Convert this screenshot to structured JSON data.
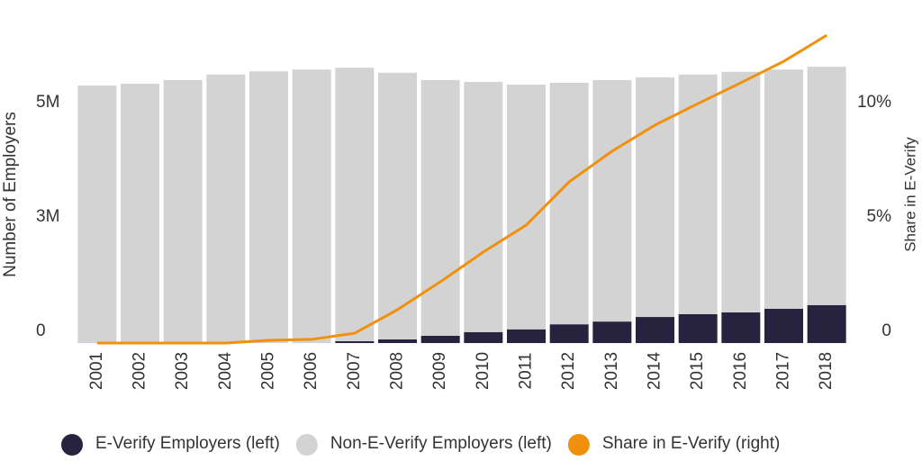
{
  "chart_data": {
    "type": "bar-line",
    "y_label": "Number of Employers",
    "y2_label": "Share in E-Verify",
    "categories": [
      "2001",
      "2002",
      "2003",
      "2004",
      "2005",
      "2006",
      "2007",
      "2008",
      "2009",
      "2010",
      "2011",
      "2012",
      "2013",
      "2014",
      "2015",
      "2016",
      "2017",
      "2018"
    ],
    "series": [
      {
        "name": "E-Verify Employers (left)",
        "color": "#27233f",
        "kind": "bar",
        "values": [
          0,
          0,
          0,
          0,
          0,
          0,
          40000,
          80000,
          160000,
          240000,
          300000,
          410000,
          470000,
          570000,
          630000,
          670000,
          750000,
          830000
        ]
      },
      {
        "name": "Non-E-Verify Employers (left)",
        "color": "#d3d3d3",
        "kind": "bar",
        "values": [
          5630000,
          5670000,
          5750000,
          5870000,
          5940000,
          5980000,
          5980000,
          5830000,
          5590000,
          5470000,
          5350000,
          5280000,
          5280000,
          5240000,
          5240000,
          5260000,
          5230000,
          5210000
        ]
      },
      {
        "name": "Share in E-Verify (right)",
        "color": "#f0900c",
        "kind": "line",
        "axis": "y2",
        "values": [
          0,
          0,
          0,
          0,
          0.12,
          0.16,
          0.43,
          1.46,
          2.68,
          3.98,
          5.16,
          7.05,
          8.39,
          9.53,
          10.47,
          11.38,
          12.32,
          13.46
        ]
      }
    ],
    "ylim": [
      0,
      7500000
    ],
    "yticks": [
      0,
      {
        "value": 2500000,
        "label": "3M"
      },
      {
        "value": 5000000,
        "label": "5M"
      }
    ],
    "y2lim": [
      0,
      15
    ],
    "y2ticks": [
      0,
      {
        "value": 5,
        "label": "5%"
      },
      {
        "value": 10,
        "label": "10%"
      }
    ]
  }
}
